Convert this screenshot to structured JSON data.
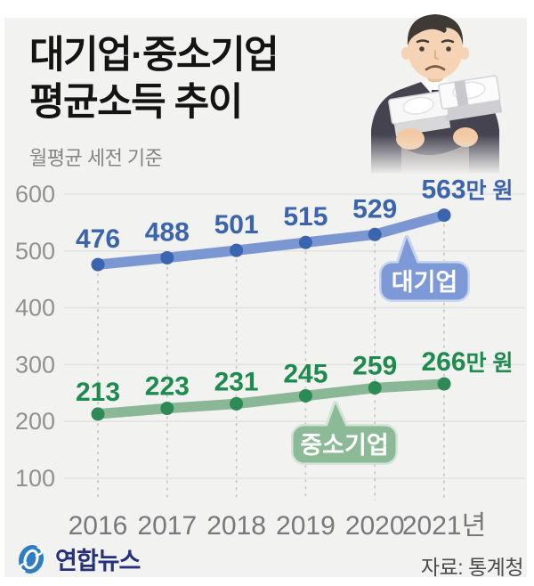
{
  "header": {
    "title_line1": "대기업·중소기업",
    "title_line2": "평균소득 추이",
    "subtitle": "월평균 세전 기준"
  },
  "illustration": "businessman-holding-money-stacks-sad-face",
  "footer": {
    "brand": "연합뉴스",
    "source": "자료: 통계청"
  },
  "colors": {
    "panel_bg": "#f2f2f1",
    "page_bg": "#ffffff",
    "grid": "#e3e3e1",
    "dash_guide": "#c6c6c4",
    "axis_text": "#8c8c8c",
    "large_company_line": "#7b97d1",
    "large_company_dot": "#3a64ad",
    "large_company_text": "#3a64ad",
    "sme_line": "#8ab795",
    "sme_dot": "#2d8a55",
    "sme_text": "#1d8a4e",
    "brand_blue": "#2e7ec6",
    "brand_navy": "#25317c"
  },
  "chart_data": {
    "type": "line",
    "title": "대기업·중소기업 평균소득 추이 (월평균 세전 기준)",
    "categories": [
      "2016",
      "2017",
      "2018",
      "2019",
      "2020",
      "2021년"
    ],
    "unit_suffix": "만 원",
    "yticks": [
      600,
      500,
      400,
      300,
      200,
      100
    ],
    "ylim": [
      100,
      600
    ],
    "grid": true,
    "legend_position": "callout-bubbles-on-lines",
    "series": [
      {
        "name": "대기업",
        "slug": "large-company",
        "values": [
          476,
          488,
          501,
          515,
          529,
          563
        ],
        "line_color": "#7b97d1",
        "dot_color": "#3a64ad",
        "label_color": "#3a64ad",
        "bubble_fill": "#7e99d7",
        "bubble_halo": "#c9d4ef",
        "bubble_text_color": "#ffffff"
      },
      {
        "name": "중소기업",
        "slug": "sme",
        "values": [
          213,
          223,
          231,
          245,
          259,
          266
        ],
        "line_color": "#8ab795",
        "dot_color": "#2d8a55",
        "label_color": "#1d8a4e",
        "bubble_fill": "#8cba97",
        "bubble_halo": "#d2e4d6",
        "bubble_text_color": "#ffffff"
      }
    ]
  }
}
